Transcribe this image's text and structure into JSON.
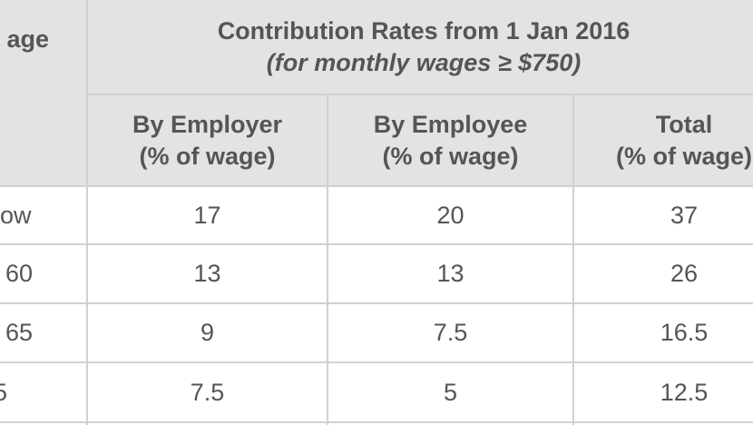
{
  "table": {
    "header": {
      "age_label": "age",
      "group_title": "Contribution Rates from 1 Jan 2016",
      "group_subtitle": "(for monthly wages ≥ $750)",
      "columns": [
        {
          "line1": "By Employer",
          "line2": "(% of wage)"
        },
        {
          "line1": "By Employee",
          "line2": "(% of wage)"
        },
        {
          "line1": "Total",
          "line2": "(% of wage)"
        }
      ]
    },
    "rows": [
      {
        "age": "ow",
        "employer": "17",
        "employee": "20",
        "total": "37"
      },
      {
        "age": "60",
        "employer": "13",
        "employee": "13",
        "total": "26"
      },
      {
        "age": "65",
        "employer": "9",
        "employee": "7.5",
        "total": "16.5"
      },
      {
        "age": "5",
        "employer": "7.5",
        "employee": "5",
        "total": "12.5"
      }
    ]
  }
}
